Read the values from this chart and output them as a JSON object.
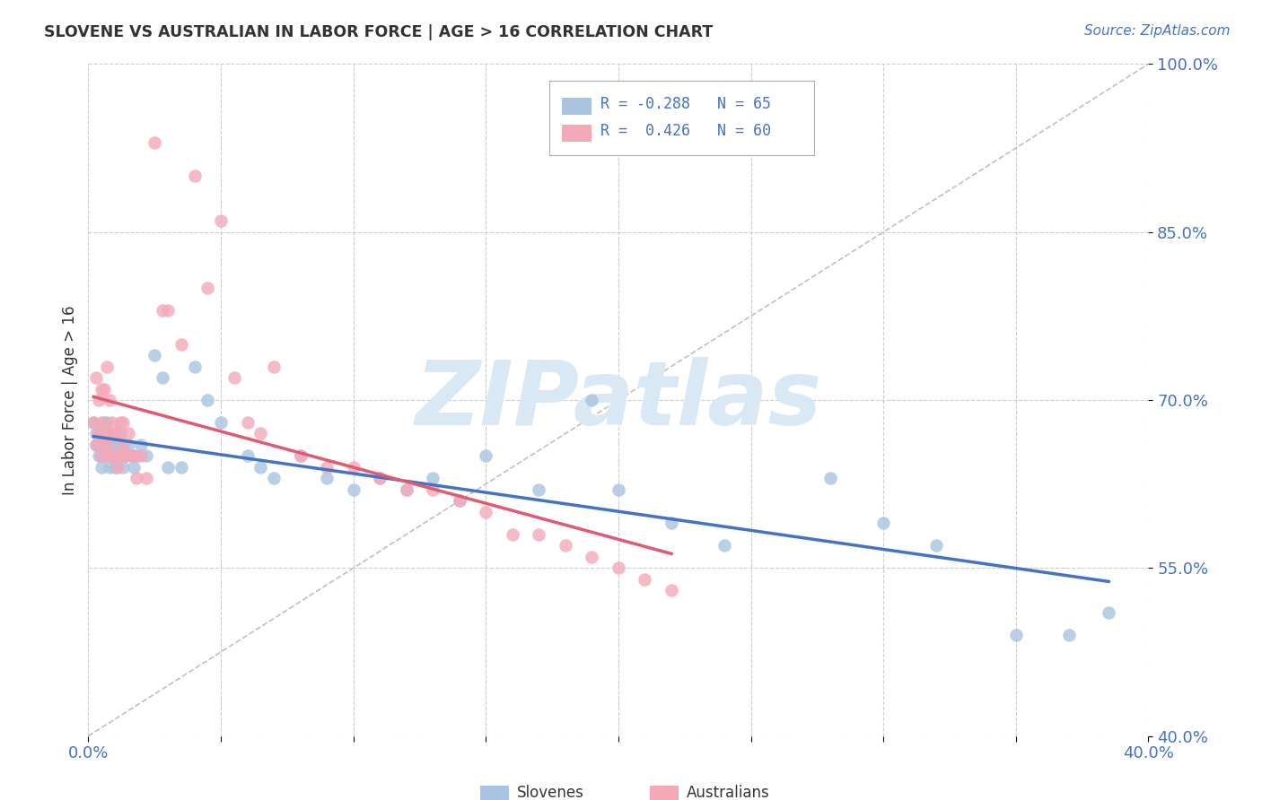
{
  "title": "SLOVENE VS AUSTRALIAN IN LABOR FORCE | AGE > 16 CORRELATION CHART",
  "source_text": "Source: ZipAtlas.com",
  "ylabel": "In Labor Force | Age > 16",
  "xlim": [
    0.0,
    0.4
  ],
  "ylim": [
    0.4,
    1.0
  ],
  "xticks": [
    0.0,
    0.05,
    0.1,
    0.15,
    0.2,
    0.25,
    0.3,
    0.35,
    0.4
  ],
  "yticks": [
    0.4,
    0.55,
    0.7,
    0.85,
    1.0
  ],
  "slovene_color": "#a8c4e0",
  "australian_color": "#f4a8b8",
  "slovene_line_color": "#4472c4",
  "australian_line_color": "#e05a70",
  "diagonal_color": "#c0c0c0",
  "background_color": "#ffffff",
  "grid_color": "#cccccc",
  "watermark": "ZIPatlas",
  "watermark_color": "#d8e8f5",
  "tick_color": "#4472c4",
  "title_color": "#333333",
  "slovene_R": -0.288,
  "slovene_N": 65,
  "australian_R": 0.426,
  "australian_N": 60,
  "slovene_x": [
    0.002,
    0.003,
    0.003,
    0.004,
    0.004,
    0.004,
    0.005,
    0.005,
    0.005,
    0.005,
    0.006,
    0.006,
    0.007,
    0.007,
    0.007,
    0.008,
    0.008,
    0.008,
    0.009,
    0.009,
    0.01,
    0.01,
    0.01,
    0.011,
    0.011,
    0.012,
    0.012,
    0.013,
    0.013,
    0.014,
    0.015,
    0.016,
    0.017,
    0.018,
    0.02,
    0.022,
    0.025,
    0.028,
    0.03,
    0.035,
    0.04,
    0.045,
    0.05,
    0.06,
    0.065,
    0.07,
    0.08,
    0.09,
    0.1,
    0.11,
    0.12,
    0.13,
    0.14,
    0.15,
    0.17,
    0.19,
    0.2,
    0.22,
    0.24,
    0.28,
    0.3,
    0.32,
    0.35,
    0.37,
    0.385
  ],
  "slovene_y": [
    0.68,
    0.67,
    0.66,
    0.65,
    0.66,
    0.67,
    0.65,
    0.66,
    0.64,
    0.65,
    0.66,
    0.68,
    0.65,
    0.66,
    0.68,
    0.64,
    0.65,
    0.67,
    0.65,
    0.66,
    0.64,
    0.65,
    0.67,
    0.65,
    0.66,
    0.65,
    0.67,
    0.64,
    0.66,
    0.65,
    0.66,
    0.65,
    0.64,
    0.65,
    0.66,
    0.65,
    0.74,
    0.72,
    0.64,
    0.64,
    0.73,
    0.7,
    0.68,
    0.65,
    0.64,
    0.63,
    0.65,
    0.63,
    0.62,
    0.63,
    0.62,
    0.63,
    0.61,
    0.65,
    0.62,
    0.7,
    0.62,
    0.59,
    0.57,
    0.63,
    0.59,
    0.57,
    0.49,
    0.49,
    0.51
  ],
  "australian_x": [
    0.002,
    0.003,
    0.003,
    0.004,
    0.004,
    0.005,
    0.005,
    0.005,
    0.006,
    0.006,
    0.006,
    0.007,
    0.007,
    0.007,
    0.008,
    0.008,
    0.008,
    0.009,
    0.009,
    0.01,
    0.01,
    0.011,
    0.011,
    0.012,
    0.012,
    0.013,
    0.013,
    0.014,
    0.015,
    0.016,
    0.017,
    0.018,
    0.02,
    0.022,
    0.025,
    0.028,
    0.03,
    0.035,
    0.04,
    0.045,
    0.05,
    0.055,
    0.06,
    0.065,
    0.07,
    0.08,
    0.09,
    0.1,
    0.11,
    0.12,
    0.13,
    0.14,
    0.15,
    0.16,
    0.17,
    0.18,
    0.19,
    0.2,
    0.21,
    0.22
  ],
  "australian_y": [
    0.68,
    0.66,
    0.72,
    0.67,
    0.7,
    0.65,
    0.68,
    0.71,
    0.66,
    0.67,
    0.71,
    0.66,
    0.67,
    0.73,
    0.65,
    0.67,
    0.7,
    0.65,
    0.68,
    0.65,
    0.67,
    0.64,
    0.67,
    0.65,
    0.68,
    0.66,
    0.68,
    0.65,
    0.67,
    0.65,
    0.65,
    0.63,
    0.65,
    0.63,
    0.93,
    0.78,
    0.78,
    0.75,
    0.9,
    0.8,
    0.86,
    0.72,
    0.68,
    0.67,
    0.73,
    0.65,
    0.64,
    0.64,
    0.63,
    0.62,
    0.62,
    0.61,
    0.6,
    0.58,
    0.58,
    0.57,
    0.56,
    0.55,
    0.54,
    0.53
  ]
}
